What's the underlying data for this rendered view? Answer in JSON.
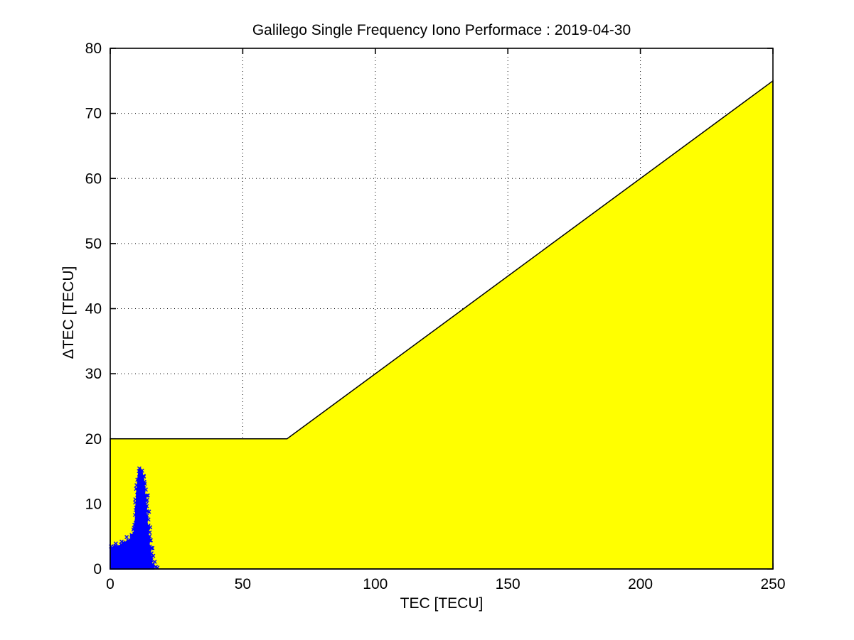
{
  "window": {
    "background_color": "#ffffff"
  },
  "chart_data": {
    "type": "scatter",
    "title": "Galilego Single Frequency Iono Performace : 2019-04-30",
    "xlabel": "TEC [TECU]",
    "ylabel": "ΔTEC [TECU]",
    "xlim": [
      0,
      250
    ],
    "ylim": [
      0,
      80
    ],
    "x_ticks": [
      0,
      50,
      100,
      150,
      200,
      250
    ],
    "y_ticks": [
      0,
      10,
      20,
      30,
      40,
      50,
      60,
      70,
      80
    ],
    "grid": {
      "style": "dotted",
      "color": "#000000",
      "on": true
    },
    "axis_color": "#000000",
    "legend": "none",
    "threshold_region": {
      "name": "single-frequency-iono-threshold-area",
      "boundary_rule": "deltaTEC = max(20, 0.3 * TEC)",
      "boundary_points": [
        [
          0,
          20
        ],
        [
          66.7,
          20
        ],
        [
          250,
          75
        ]
      ],
      "fill_color": "#ffff00",
      "edge_color": "#000000"
    },
    "scatter_series": {
      "name": "measured deltaTEC vs TEC",
      "marker": "x",
      "color": "#0000ff",
      "description": "dense cluster of x markers spanning TEC 0-17 TECU at deltaTEC 0-4, with a narrow plume rising to a tip near (11.2, 15.5)",
      "cluster_outline": [
        [
          0,
          0
        ],
        [
          16.5,
          0
        ],
        [
          16.2,
          0.4
        ],
        [
          15.5,
          0.8
        ],
        [
          15.8,
          1.5
        ],
        [
          15.0,
          2.2
        ],
        [
          15.3,
          3.0
        ],
        [
          14.6,
          3.8
        ],
        [
          14.9,
          4.6
        ],
        [
          14.2,
          5.4
        ],
        [
          14.4,
          6.2
        ],
        [
          13.8,
          7.0
        ],
        [
          14.0,
          7.8
        ],
        [
          13.5,
          8.6
        ],
        [
          13.7,
          9.4
        ],
        [
          13.2,
          10.2
        ],
        [
          13.5,
          10.9
        ],
        [
          12.9,
          11.6
        ],
        [
          13.1,
          12.3
        ],
        [
          12.5,
          13.0
        ],
        [
          12.6,
          13.8
        ],
        [
          12.1,
          14.5
        ],
        [
          11.8,
          15.2
        ],
        [
          11.2,
          15.5
        ],
        [
          10.8,
          14.9
        ],
        [
          10.5,
          13.9
        ],
        [
          10.3,
          12.8
        ],
        [
          10.0,
          11.6
        ],
        [
          9.9,
          10.4
        ],
        [
          9.6,
          9.2
        ],
        [
          9.7,
          8.1
        ],
        [
          9.3,
          6.9
        ],
        [
          9.1,
          5.8
        ],
        [
          8.6,
          5.0
        ],
        [
          7.8,
          4.6
        ],
        [
          6.8,
          4.4
        ],
        [
          5.8,
          4.1
        ],
        [
          4.8,
          3.9
        ],
        [
          3.8,
          3.6
        ],
        [
          2.8,
          3.5
        ],
        [
          1.8,
          3.4
        ],
        [
          0.8,
          3.3
        ],
        [
          0,
          3.2
        ]
      ],
      "outlier_points": [
        [
          17.2,
          0.3
        ],
        [
          17.8,
          0.2
        ],
        [
          16.8,
          1.1
        ],
        [
          16.2,
          2.0
        ],
        [
          15.9,
          3.2
        ],
        [
          15.3,
          4.4
        ],
        [
          14.9,
          5.6
        ],
        [
          15.1,
          6.4
        ],
        [
          14.4,
          7.6
        ],
        [
          14.6,
          8.8
        ],
        [
          13.9,
          10.6
        ],
        [
          14.2,
          11.3
        ],
        [
          13.4,
          12.2
        ],
        [
          13.0,
          13.1
        ],
        [
          12.6,
          14.3
        ],
        [
          12.0,
          15.1
        ],
        [
          6.2,
          4.9
        ],
        [
          4.3,
          4.2
        ],
        [
          2.1,
          3.9
        ],
        [
          8.1,
          5.2
        ],
        [
          9.0,
          6.3
        ],
        [
          16.0,
          0.6
        ]
      ],
      "edge_marker_spacing_px": 5,
      "marker_size_px": 5,
      "seed": 42
    }
  }
}
